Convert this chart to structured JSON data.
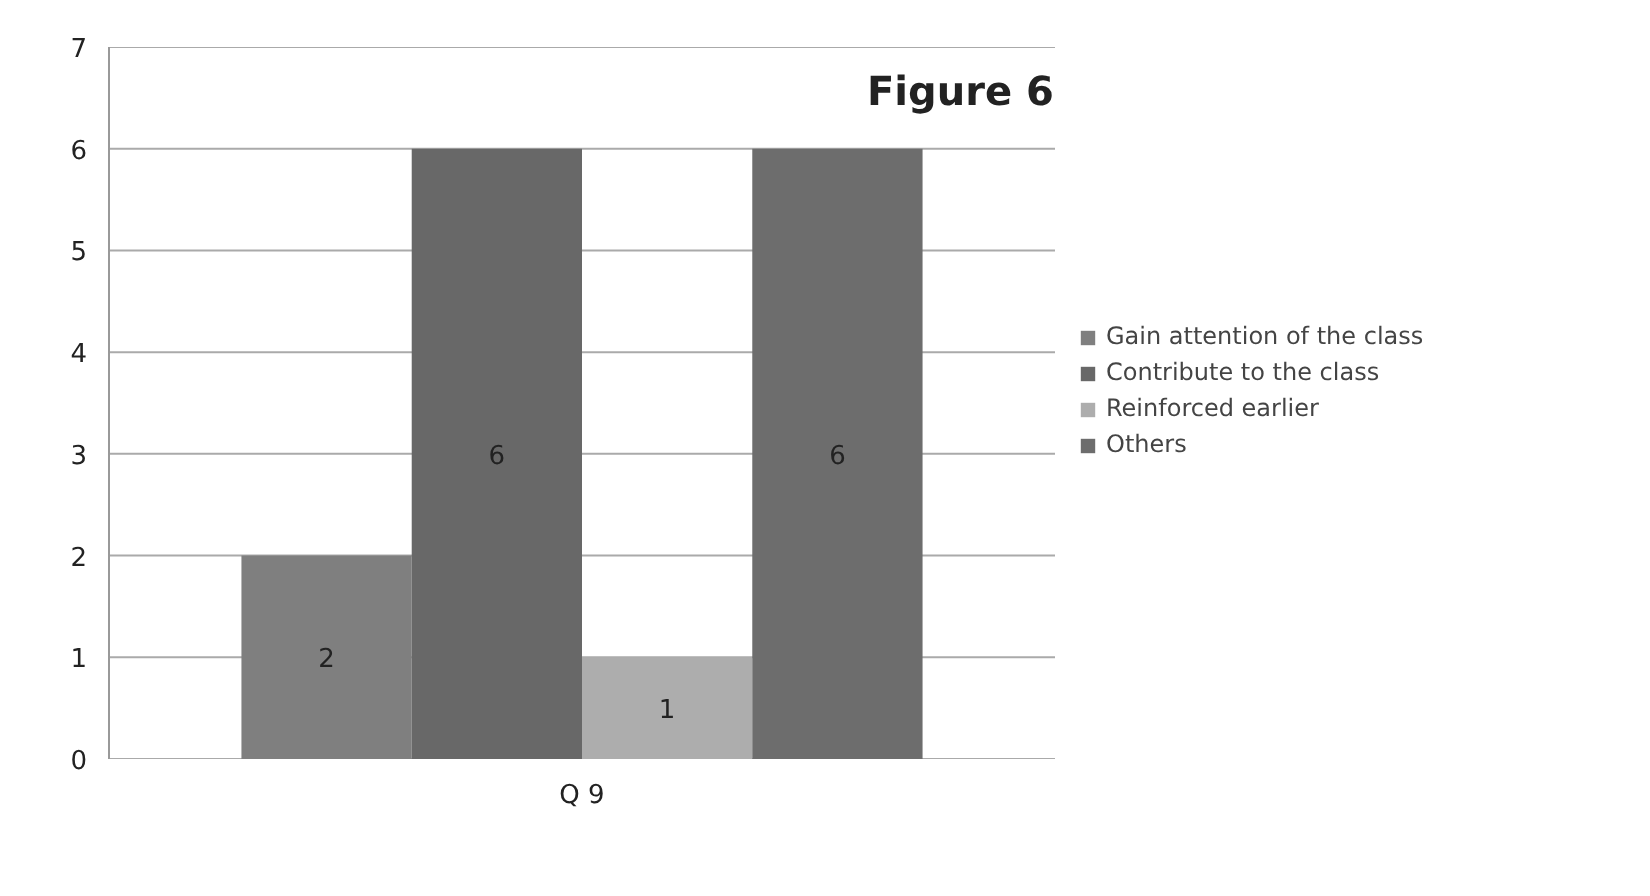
{
  "chart_data": {
    "type": "bar",
    "title": "Figure 6",
    "categories": [
      "Q 9"
    ],
    "series": [
      {
        "name": "Gain attention of the class",
        "color": "#7f7f7f",
        "values": [
          2
        ]
      },
      {
        "name": "Contribute to the class",
        "color": "#686868",
        "values": [
          6
        ]
      },
      {
        "name": "Reinforced earlier",
        "color": "#adadad",
        "values": [
          1
        ]
      },
      {
        "name": "Others",
        "color": "#6d6d6d",
        "values": [
          6
        ]
      }
    ],
    "ylim": [
      0,
      7
    ],
    "yticks": [
      0,
      1,
      2,
      3,
      4,
      5,
      6,
      7
    ],
    "grid": "y",
    "legend": "right",
    "data_labels": true
  }
}
